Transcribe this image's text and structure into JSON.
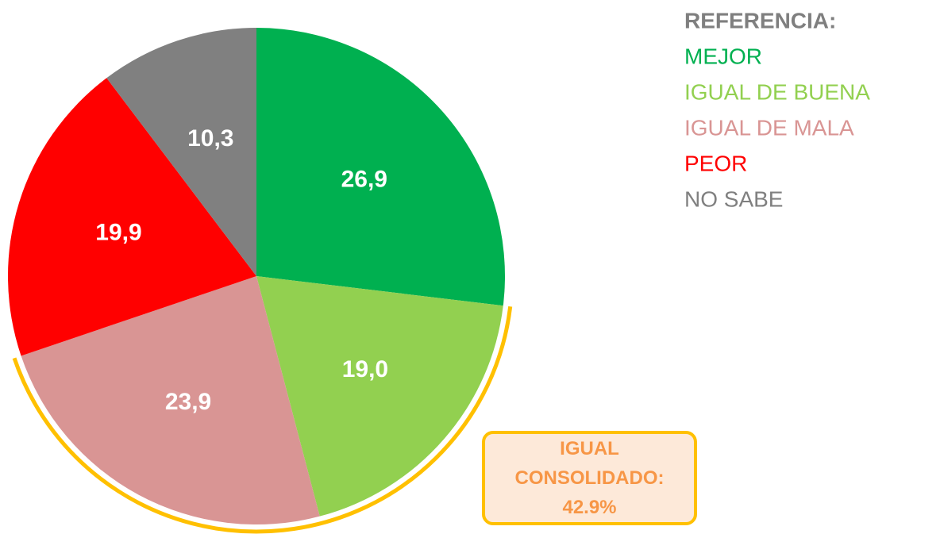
{
  "chart_data": {
    "type": "pie",
    "categories": [
      "MEJOR",
      "IGUAL DE BUENA",
      "IGUAL DE MALA",
      "PEOR",
      "NO SABE"
    ],
    "values": [
      26.9,
      19.0,
      23.9,
      19.9,
      10.3
    ],
    "value_labels": [
      "26,9",
      "19,0",
      "23,9",
      "19,9",
      "10,3"
    ],
    "colors": [
      "#00b050",
      "#92d050",
      "#d99594",
      "#ff0000",
      "#808080"
    ],
    "legend_title": "REFERENCIA:",
    "annotation": "IGUAL CONSOLIDADO: 42.9%"
  }
}
